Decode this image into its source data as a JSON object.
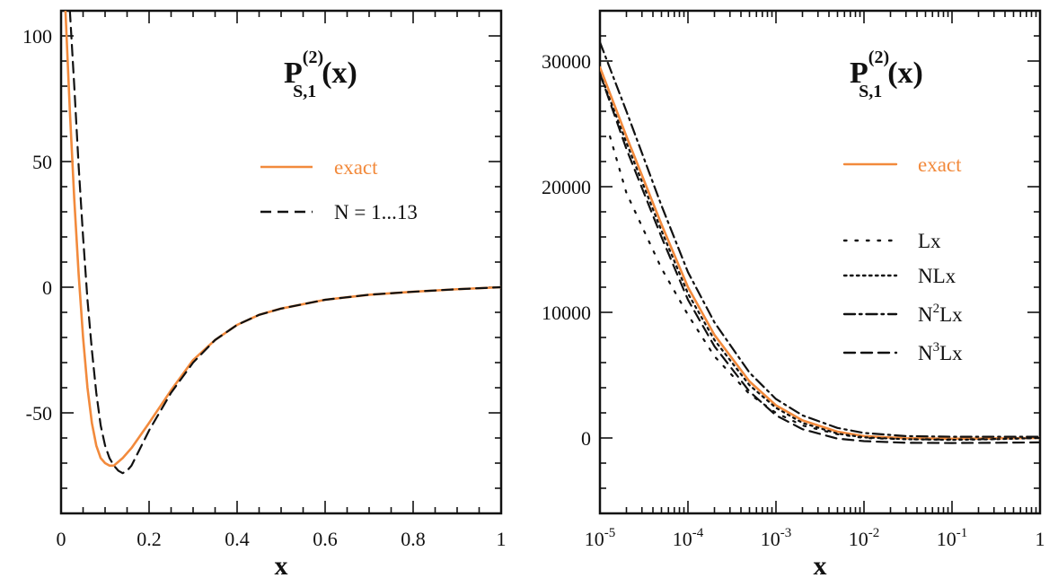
{
  "chart_data": [
    {
      "type": "line",
      "title": {
        "base": "P",
        "sup": "(2)",
        "sub": "S,1",
        "arg": "(x)"
      },
      "xlabel": "x",
      "ylabel": "",
      "xscale": "linear",
      "xlim": [
        0,
        1
      ],
      "ylim": [
        -90,
        110
      ],
      "xticks": [
        0,
        0.2,
        0.4,
        0.6,
        0.8,
        1
      ],
      "xtick_labels": [
        "0",
        "0.2",
        "0.4",
        "0.6",
        "0.8",
        "1"
      ],
      "yticks": [
        -50,
        0,
        50,
        100
      ],
      "ytick_labels": [
        "-50",
        "0",
        "50",
        "100"
      ],
      "grid": false,
      "legend_position": "upper-right",
      "series": [
        {
          "name": "exact",
          "color": "#f28a3c",
          "style": "solid",
          "x": [
            0.01,
            0.02,
            0.03,
            0.04,
            0.05,
            0.06,
            0.07,
            0.08,
            0.09,
            0.1,
            0.11,
            0.12,
            0.14,
            0.16,
            0.18,
            0.2,
            0.25,
            0.3,
            0.35,
            0.4,
            0.45,
            0.5,
            0.6,
            0.7,
            0.8,
            0.9,
            1.0
          ],
          "y": [
            110,
            70,
            35,
            5,
            -20,
            -40,
            -54,
            -63,
            -68,
            -70,
            -71,
            -71,
            -68,
            -64,
            -59,
            -54,
            -41,
            -29,
            -21,
            -15,
            -11,
            -8.5,
            -5,
            -3,
            -1.8,
            -0.8,
            0
          ]
        },
        {
          "name": "N = 1...13",
          "color": "#111111",
          "style": "dashed",
          "x": [
            0.02,
            0.03,
            0.04,
            0.05,
            0.06,
            0.07,
            0.08,
            0.09,
            0.1,
            0.11,
            0.12,
            0.13,
            0.14,
            0.15,
            0.16,
            0.18,
            0.2,
            0.25,
            0.3,
            0.35,
            0.4,
            0.45,
            0.5,
            0.6,
            0.7,
            0.8,
            0.9,
            1.0
          ],
          "y": [
            110,
            80,
            48,
            20,
            -5,
            -25,
            -42,
            -55,
            -63,
            -68,
            -71,
            -73,
            -74,
            -73,
            -71,
            -64,
            -57,
            -42,
            -30,
            -21,
            -15,
            -11,
            -8.5,
            -5,
            -3,
            -1.8,
            -0.8,
            0
          ]
        }
      ]
    },
    {
      "type": "line",
      "title": {
        "base": "P",
        "sup": "(2)",
        "sub": "S,1",
        "arg": "(x)"
      },
      "xlabel": "x",
      "ylabel": "",
      "xscale": "log",
      "xlim": [
        1e-05,
        1
      ],
      "ylim": [
        -6000,
        34000
      ],
      "xtick_labels": [
        {
          "base": "10",
          "exp": "-5",
          "value": 1e-05
        },
        {
          "base": "10",
          "exp": "-4",
          "value": 0.0001
        },
        {
          "base": "10",
          "exp": "-3",
          "value": 0.001
        },
        {
          "base": "10",
          "exp": "-2",
          "value": 0.01
        },
        {
          "base": "10",
          "exp": "-1",
          "value": 0.1
        },
        {
          "base": "1",
          "exp": "",
          "value": 1
        }
      ],
      "yticks": [
        0,
        10000,
        20000,
        30000
      ],
      "ytick_labels": [
        "0",
        "10000",
        "20000",
        "30000"
      ],
      "grid": false,
      "legend_position": "right",
      "series": [
        {
          "name": "exact",
          "color": "#f28a3c",
          "style": "solid",
          "x": [
            1e-05,
            2e-05,
            5e-05,
            0.0001,
            0.0002,
            0.0005,
            0.001,
            0.002,
            0.005,
            0.01,
            0.03,
            0.1,
            0.3,
            1
          ],
          "y": [
            29500,
            24000,
            17000,
            12000,
            8200,
            4500,
            2600,
            1400,
            500,
            150,
            -20,
            -60,
            -30,
            0
          ]
        },
        {
          "name": "Lx",
          "label": {
            "main": "Lx",
            "exp": ""
          },
          "color": "#111111",
          "style": "dotted-sparse",
          "x": [
            1.3e-05,
            2e-05,
            5e-05,
            0.0001,
            0.0002,
            0.0005,
            0.001,
            0.002,
            0.005,
            0.01,
            0.03,
            0.1,
            0.3,
            1
          ],
          "y": [
            24000,
            19500,
            13500,
            9800,
            6500,
            3500,
            2000,
            1000,
            300,
            0,
            -100,
            -120,
            -80,
            0
          ]
        },
        {
          "name": "NLx",
          "label": {
            "main": "NLx",
            "exp": ""
          },
          "color": "#111111",
          "style": "dotted",
          "x": [
            1e-05,
            2e-05,
            5e-05,
            0.0001,
            0.0002,
            0.0005,
            0.001,
            0.002,
            0.005,
            0.01,
            0.03,
            0.1,
            0.3,
            1
          ],
          "y": [
            29000,
            23500,
            16500,
            11500,
            7800,
            4200,
            2400,
            1200,
            350,
            50,
            -100,
            -150,
            -100,
            0
          ]
        },
        {
          "name": "N2Lx",
          "label": {
            "main": "N",
            "exp": "2",
            "rest": "Lx"
          },
          "color": "#111111",
          "style": "dashdot",
          "x": [
            1e-05,
            2e-05,
            5e-05,
            0.0001,
            0.0002,
            0.0005,
            0.001,
            0.002,
            0.005,
            0.01,
            0.03,
            0.1,
            0.3,
            1
          ],
          "y": [
            31500,
            26000,
            18500,
            13200,
            9200,
            5200,
            3100,
            1800,
            800,
            400,
            150,
            100,
            100,
            100
          ]
        },
        {
          "name": "N3Lx",
          "label": {
            "main": "N",
            "exp": "3",
            "rest": "Lx"
          },
          "color": "#111111",
          "style": "dashed",
          "x": [
            1e-05,
            2e-05,
            5e-05,
            0.0001,
            0.0002,
            0.0005,
            0.001,
            0.002,
            0.005,
            0.01,
            0.03,
            0.1,
            0.3,
            1
          ],
          "y": [
            29000,
            23000,
            16000,
            11000,
            7300,
            3700,
            1800,
            700,
            -50,
            -250,
            -380,
            -400,
            -380,
            -350
          ]
        }
      ]
    }
  ]
}
